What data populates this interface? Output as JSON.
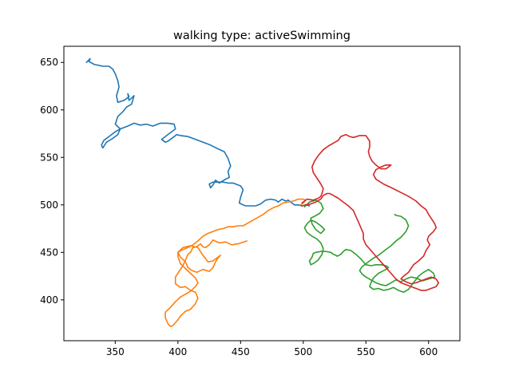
{
  "chart_data": {
    "type": "line",
    "title": "walking type: activeSwimming",
    "xlabel": "",
    "ylabel": "",
    "xlim": [
      309,
      625
    ],
    "ylim": [
      357,
      667
    ],
    "xticks": [
      350,
      400,
      450,
      500,
      550,
      600
    ],
    "yticks": [
      400,
      450,
      500,
      550,
      600,
      650
    ],
    "grid": false,
    "series": [
      {
        "color": "#1f77b4",
        "x": [
          327,
          330,
          329,
          333,
          340,
          345,
          348,
          350,
          352,
          353,
          351,
          352,
          357,
          361,
          360,
          361,
          365,
          363,
          359,
          356,
          352,
          350,
          354,
          352,
          348,
          343,
          340,
          339,
          341,
          345,
          350,
          354,
          360,
          365,
          370,
          375,
          380,
          386,
          392,
          397,
          398,
          393,
          387,
          390,
          392,
          396,
          399,
          402,
          408,
          412,
          418,
          426,
          432,
          437,
          440,
          442,
          440,
          441,
          438,
          433,
          430,
          428,
          426,
          425,
          428,
          432,
          436,
          440,
          444,
          450,
          452,
          450,
          449,
          452,
          454,
          456,
          458,
          462,
          466,
          470,
          474,
          478,
          480,
          483,
          486,
          488,
          490,
          493,
          496,
          499,
          502,
          505
        ],
        "y": [
          650,
          654,
          651,
          648,
          646,
          646,
          643,
          638,
          631,
          624,
          615,
          608,
          610,
          614,
          617,
          610,
          615,
          606,
          603,
          598,
          593,
          585,
          580,
          574,
          570,
          566,
          560,
          563,
          568,
          572,
          577,
          580,
          583,
          586,
          584,
          585,
          583,
          586,
          586,
          585,
          580,
          575,
          569,
          566,
          567,
          571,
          574,
          573,
          572,
          570,
          567,
          563,
          559,
          556,
          549,
          541,
          535,
          529,
          527,
          523,
          526,
          521,
          518,
          522,
          524,
          524,
          524,
          523,
          523,
          520,
          516,
          508,
          502,
          500,
          499,
          499,
          499,
          499,
          501,
          505,
          506,
          505,
          503,
          506,
          504,
          505,
          503,
          500,
          500,
          499,
          500,
          499
        ]
      },
      {
        "color": "#ff7f0e",
        "x": [
          455,
          448,
          443,
          438,
          433,
          428,
          425,
          422,
          420,
          418,
          415,
          412,
          410,
          408,
          406,
          404,
          402,
          400,
          398,
          398,
          402,
          406,
          410,
          414,
          416,
          414,
          410,
          406,
          402,
          400,
          398,
          396,
          394,
          392,
          390,
          390,
          394,
          398,
          402,
          406,
          410,
          414,
          416,
          414,
          410,
          406,
          402,
          400,
          400,
          404,
          410,
          416,
          420,
          424,
          428,
          430,
          434,
          432,
          430,
          428,
          425,
          420,
          415,
          411,
          408,
          406,
          402,
          400,
          404,
          408,
          412,
          416,
          420,
          424,
          428,
          432,
          436,
          440,
          444,
          448,
          452,
          456,
          460,
          464,
          468,
          472,
          476,
          480,
          484,
          488,
          492,
          496,
          500,
          502,
          500,
          498
        ],
        "y": [
          462,
          459,
          458,
          461,
          460,
          463,
          458,
          455,
          456,
          459,
          456,
          455,
          450,
          448,
          442,
          436,
          432,
          428,
          424,
          417,
          413,
          414,
          410,
          408,
          402,
          396,
          390,
          388,
          383,
          379,
          376,
          373,
          372,
          375,
          381,
          387,
          392,
          398,
          403,
          406,
          409,
          414,
          418,
          423,
          428,
          433,
          438,
          446,
          450,
          455,
          457,
          455,
          447,
          440,
          441,
          443,
          447,
          444,
          440,
          434,
          430,
          432,
          429,
          431,
          434,
          440,
          445,
          450,
          453,
          455,
          458,
          462,
          467,
          470,
          472,
          474,
          475,
          477,
          477,
          478,
          478,
          481,
          484,
          487,
          490,
          494,
          497,
          499,
          502,
          503,
          504,
          506,
          506,
          505,
          502,
          500
        ]
      },
      {
        "color": "#2ca02c",
        "x": [
          501,
          505,
          510,
          514,
          516,
          513,
          509,
          506,
          507,
          510,
          514,
          517,
          514,
          510,
          506,
          503,
          501,
          503,
          507,
          511,
          514,
          516,
          515,
          512,
          509,
          506,
          505,
          507,
          508,
          510,
          514,
          518,
          522,
          524,
          526,
          527,
          530,
          532,
          534,
          538,
          542,
          546,
          550,
          554,
          558,
          562,
          566,
          568,
          566,
          560,
          556,
          554,
          553,
          556,
          560,
          564,
          568,
          572,
          576,
          580,
          584,
          588,
          592,
          596,
          600,
          604,
          605,
          600,
          595,
          590,
          586,
          582,
          578,
          574,
          570,
          566,
          562,
          558,
          554,
          550,
          547,
          545,
          547,
          551,
          555,
          560,
          565,
          570,
          574,
          578,
          582,
          584,
          582,
          578,
          574,
          573
        ],
        "y": [
          498,
          503,
          505,
          502,
          496,
          491,
          488,
          486,
          480,
          474,
          470,
          474,
          478,
          482,
          484,
          480,
          476,
          471,
          467,
          464,
          460,
          454,
          448,
          442,
          439,
          437,
          441,
          445,
          449,
          450,
          451,
          451,
          450,
          448,
          447,
          446,
          448,
          451,
          453,
          452,
          448,
          443,
          437,
          436,
          437,
          437,
          436,
          434,
          432,
          428,
          423,
          418,
          414,
          411,
          412,
          410,
          411,
          413,
          410,
          408,
          411,
          418,
          425,
          429,
          432,
          428,
          424,
          422,
          420,
          423,
          424,
          422,
          419,
          421,
          418,
          415,
          416,
          418,
          421,
          424,
          427,
          431,
          435,
          439,
          443,
          447,
          452,
          457,
          462,
          466,
          472,
          478,
          484,
          488,
          489,
          490
        ]
      },
      {
        "color": "#d62728",
        "x": [
          499,
          503,
          508,
          512,
          514,
          515,
          516,
          514,
          511,
          508,
          507,
          509,
          512,
          516,
          520,
          524,
          528,
          530,
          532,
          534,
          537,
          540,
          545,
          550,
          553,
          553,
          552,
          553,
          555,
          558,
          562,
          566,
          568,
          570,
          566,
          562,
          558,
          556,
          558,
          564,
          572,
          578,
          584,
          590,
          594,
          598,
          600,
          603,
          605,
          606,
          604,
          600,
          599,
          601,
          598,
          596,
          592,
          588,
          586,
          584,
          580,
          578,
          582,
          586,
          590,
          594,
          598,
          602,
          606,
          608,
          606,
          602,
          598,
          594,
          590,
          586,
          582,
          578,
          574,
          570,
          566,
          562,
          558,
          554,
          550,
          548,
          548,
          546,
          544,
          542,
          540,
          536,
          532,
          528,
          524,
          521,
          519,
          516,
          514,
          510,
          506,
          502,
          499
        ],
        "y": [
          502,
          506,
          505,
          507,
          509,
          512,
          517,
          522,
          528,
          534,
          540,
          546,
          552,
          558,
          562,
          565,
          568,
          572,
          573,
          574,
          572,
          571,
          573,
          573,
          567,
          561,
          556,
          551,
          546,
          542,
          538,
          538,
          540,
          542,
          542,
          540,
          537,
          532,
          527,
          522,
          517,
          513,
          509,
          504,
          499,
          495,
          490,
          484,
          480,
          476,
          472,
          467,
          463,
          458,
          452,
          446,
          441,
          437,
          433,
          429,
          425,
          422,
          419,
          417,
          418,
          420,
          422,
          424,
          422,
          418,
          414,
          412,
          410,
          410,
          412,
          414,
          416,
          418,
          422,
          428,
          434,
          440,
          446,
          452,
          458,
          464,
          470,
          476,
          482,
          488,
          494,
          499,
          503,
          507,
          510,
          512,
          512,
          510,
          506,
          503,
          501,
          500,
          499
        ]
      }
    ]
  }
}
